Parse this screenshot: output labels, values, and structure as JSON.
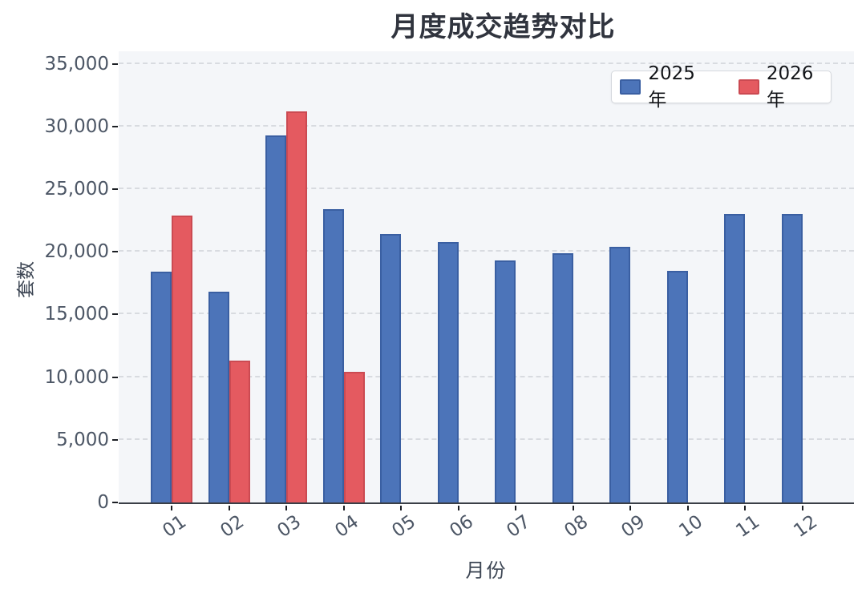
{
  "title": "月度成交趋势对比",
  "chart_data": {
    "type": "bar",
    "title": "月度成交趋势对比",
    "xlabel": "月份",
    "ylabel": "套数",
    "categories": [
      "01",
      "02",
      "03",
      "04",
      "05",
      "06",
      "07",
      "08",
      "09",
      "10",
      "11",
      "12"
    ],
    "series": [
      {
        "name": "2025年",
        "color": "#4c74b9",
        "border_color": "#3a5fa2",
        "values": [
          18400,
          16800,
          29300,
          23400,
          21400,
          20800,
          19300,
          19900,
          20400,
          18500,
          23000,
          23000
        ]
      },
      {
        "name": "2026年",
        "color": "#e45a60",
        "border_color": "#cb4a52",
        "values": [
          22900,
          11300,
          31200,
          10400,
          null,
          null,
          null,
          null,
          null,
          null,
          null,
          null
        ]
      }
    ],
    "ylim": [
      0,
      36000
    ],
    "yticks": [
      0,
      5000,
      10000,
      15000,
      20000,
      25000,
      30000,
      35000
    ],
    "ytick_labels": [
      "0",
      "5,000",
      "10,000",
      "15,000",
      "20,000",
      "25,000",
      "30,000",
      "35,000"
    ],
    "grid": true,
    "gridline_style": "dashed",
    "legend_position": "top-right",
    "plot_background": "#f4f6f9",
    "gridline_color": "#d8dbe0",
    "axis_line_color": "#3a3f47",
    "tick_label_color": "#4d5766"
  }
}
